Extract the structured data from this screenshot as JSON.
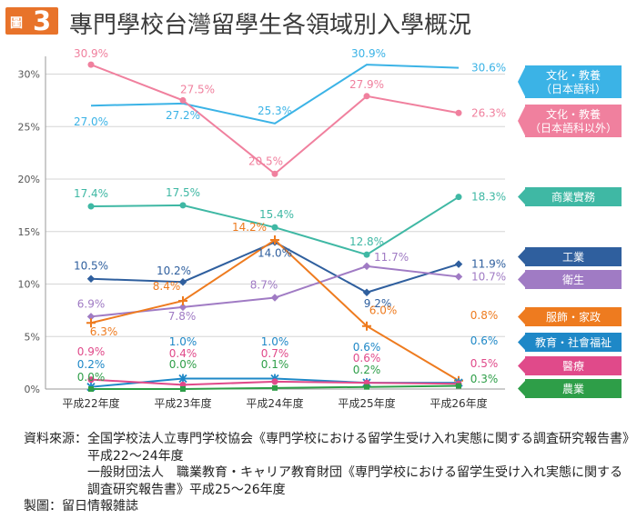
{
  "figure_label": "圖",
  "figure_number": "3",
  "title": "專門學校台灣留學生各領域別入學概況",
  "chart_data": {
    "type": "line",
    "categories": [
      "平成22年度",
      "平成23年度",
      "平成24年度",
      "平成25年度",
      "平成26年度"
    ],
    "y_ticks": [
      "0%",
      "5%",
      "10%",
      "15%",
      "20%",
      "25%",
      "30%"
    ],
    "ylim": [
      0,
      32
    ],
    "grid": "horizontal",
    "legend": "right, aligned with final values",
    "series": [
      {
        "name": "文化・教養\n（日本語科）",
        "color": "#3bb3e6",
        "values": [
          27.0,
          27.2,
          25.3,
          30.9,
          30.6
        ],
        "labels": [
          "27.0%",
          "27.2%",
          "25.3%",
          "30.9%",
          "30.6%"
        ],
        "marker": "none"
      },
      {
        "name": "文化・教養\n（日本語科以外）",
        "color": "#f0809e",
        "values": [
          30.9,
          27.5,
          20.5,
          27.9,
          26.3
        ],
        "labels": [
          "30.9%",
          "27.5%",
          "20.5%",
          "27.9%",
          "26.3%"
        ],
        "marker": "circle"
      },
      {
        "name": "商業實務",
        "color": "#3fb8a4",
        "values": [
          17.4,
          17.5,
          15.4,
          12.8,
          18.3
        ],
        "labels": [
          "17.4%",
          "17.5%",
          "15.4%",
          "12.8%",
          "18.3%"
        ],
        "marker": "circle"
      },
      {
        "name": "工業",
        "color": "#2f5f9e",
        "values": [
          10.5,
          10.2,
          14.0,
          9.2,
          11.9
        ],
        "labels": [
          "10.5%",
          "10.2%",
          "14.0%",
          "9.2%",
          "11.9%"
        ],
        "marker": "diamond"
      },
      {
        "name": "衛生",
        "color": "#a07bc4",
        "values": [
          6.9,
          7.8,
          8.7,
          11.7,
          10.7
        ],
        "labels": [
          "6.9%",
          "7.8%",
          "8.7%",
          "11.7%",
          "10.7%"
        ],
        "marker": "diamond"
      },
      {
        "name": "服飾・家政",
        "color": "#ee7b1f",
        "values": [
          6.3,
          8.4,
          14.2,
          6.0,
          0.8
        ],
        "labels": [
          "6.3%",
          "8.4%",
          "14.2%",
          "6.0%",
          "0.8%"
        ],
        "marker": "plus"
      },
      {
        "name": "教育・社會福祉",
        "color": "#1e88c7",
        "values": [
          0.2,
          1.0,
          1.0,
          0.6,
          0.6
        ],
        "labels": [
          "0.2%",
          "1.0%",
          "1.0%",
          "0.6%",
          "0.6%"
        ],
        "marker": "star"
      },
      {
        "name": "醫療",
        "color": "#e04a8a",
        "values": [
          0.9,
          0.4,
          0.7,
          0.6,
          0.5
        ],
        "labels": [
          "0.9%",
          "0.4%",
          "0.7%",
          "0.6%",
          "0.5%"
        ],
        "marker": "circle"
      },
      {
        "name": "農業",
        "color": "#2e9e48",
        "values": [
          0.0,
          0.0,
          0.1,
          0.2,
          0.3
        ],
        "labels": [
          "0.0%",
          "0.0%",
          "0.1%",
          "0.2%",
          "0.3%"
        ],
        "marker": "square"
      }
    ]
  },
  "source": {
    "label": "資料來源：",
    "line1": "全国学校法人立専門学校協会《専門学校における留学生受け入れ実態に関する調査研究報告書》平成22～24年度",
    "line2": "一般財団法人　職業教育・キャリア教育財団《専門学校における留学生受け入れ実態に関する調査研究報告書》平成25～26年度",
    "producer_label": "製圖：",
    "producer": "留日情報雑誌"
  }
}
